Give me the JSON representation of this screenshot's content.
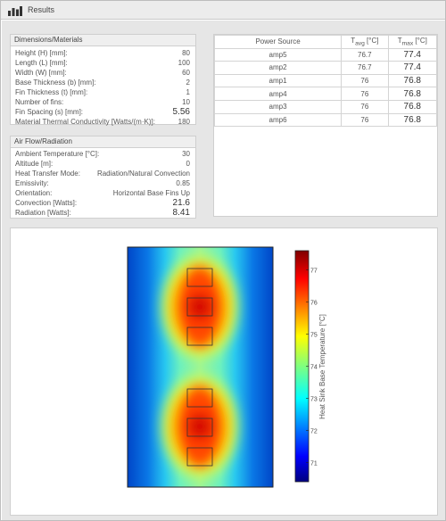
{
  "window": {
    "title": "Results",
    "icon": "bar-chart-icon"
  },
  "dimensions_materials": {
    "header": "Dimensions/Materials",
    "rows": [
      {
        "label": "Height (H) [mm]:",
        "value": "80"
      },
      {
        "label": "Length (L) [mm]:",
        "value": "100"
      },
      {
        "label": "Width (W) [mm]:",
        "value": "60"
      },
      {
        "label": "Base Thickness (b) [mm]:",
        "value": "2"
      },
      {
        "label": "Fin Thickness (t) [mm]:",
        "value": "1"
      },
      {
        "label": "Number of fins:",
        "value": "10"
      },
      {
        "label": "Fin Spacing (s) [mm]:",
        "value": "5.56"
      },
      {
        "label": "Material Thermal Conductivity [Watts/(m·K)]:",
        "value": "180"
      }
    ]
  },
  "air_flow_radiation": {
    "header": "Air Flow/Radiation",
    "rows": [
      {
        "label": "Ambient Temperature [°C]:",
        "value": "30"
      },
      {
        "label": "Altitude [m]:",
        "value": "0"
      },
      {
        "label": "Heat Transfer Mode:",
        "value": "Radiation/Natural Convection"
      },
      {
        "label": "Emissivity:",
        "value": "0.85"
      },
      {
        "label": "Orientation:",
        "value": "Horizontal Base Fins Up"
      },
      {
        "label": "Convection [Watts]:",
        "value": "21.6"
      },
      {
        "label": "Radiation [Watts]:",
        "value": "8.41"
      }
    ]
  },
  "power_source_table": {
    "columns": {
      "source": "Power Source",
      "tavg_main": "T",
      "tavg_sub": "avg",
      "tavg_unit": " [°C]",
      "tmax_main": "T",
      "tmax_sub": "max",
      "tmax_unit": " [°C]"
    },
    "rows": [
      {
        "source": "amp5",
        "tavg": "76.7",
        "tmax": "77.4"
      },
      {
        "source": "amp2",
        "tavg": "76.7",
        "tmax": "77.4"
      },
      {
        "source": "amp1",
        "tavg": "76",
        "tmax": "76.8"
      },
      {
        "source": "amp4",
        "tavg": "76",
        "tmax": "76.8"
      },
      {
        "source": "amp3",
        "tavg": "76",
        "tmax": "76.8"
      },
      {
        "source": "amp6",
        "tavg": "76",
        "tmax": "76.8"
      }
    ]
  },
  "chart_data": {
    "type": "heatmap",
    "title": "",
    "colorbar": {
      "label": "Heat Sink Base Temperature [°C]",
      "ticks": [
        71,
        72,
        73,
        74,
        75,
        76,
        77
      ],
      "range": [
        70.4,
        77.6
      ],
      "colormap": "jet"
    },
    "sources": [
      {
        "name": "amp5",
        "row": 1
      },
      {
        "name": "amp2",
        "row": 2
      },
      {
        "name": "amp1",
        "row": 3
      },
      {
        "name": "amp4",
        "row": 4
      },
      {
        "name": "amp3",
        "row": 5
      },
      {
        "name": "amp6",
        "row": 6
      }
    ]
  }
}
